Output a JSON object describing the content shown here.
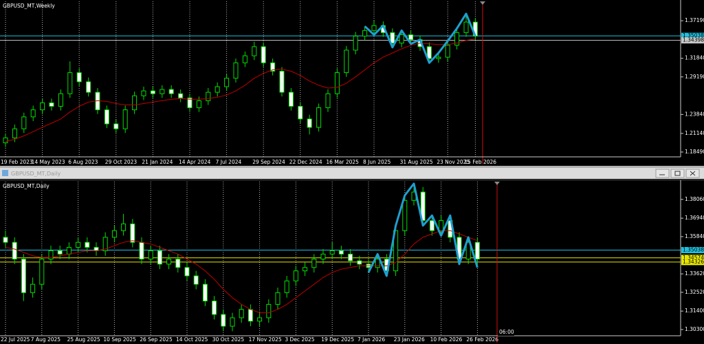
{
  "window": {
    "title": "GBPUSD_MT,Daily"
  },
  "chart_data": [
    {
      "type": "candlestick",
      "title": "GBPUSD_MT,Weekly",
      "categories": [
        "19 Feb 2023",
        null,
        null,
        null,
        "14 May 2023",
        null,
        null,
        null,
        "6 Aug 2023",
        null,
        null,
        null,
        "29 Oct 2023",
        null,
        null,
        null,
        "21 Jan 2024",
        null,
        null,
        null,
        "14 Apr 2024",
        null,
        null,
        null,
        "7 Jul 2024",
        null,
        null,
        null,
        "29 Sep 2024",
        null,
        null,
        null,
        "22 Dec 2024",
        null,
        null,
        null,
        "16 Mar 2025",
        null,
        null,
        null,
        "8 Jun 2025",
        null,
        null,
        null,
        "31 Aug 2025",
        null,
        null,
        null,
        "23 Nov 2025",
        null,
        null,
        "15 Feb 2026"
      ],
      "open": [
        1.198,
        1.205,
        1.218,
        1.235,
        1.245,
        1.255,
        1.25,
        1.268,
        1.298,
        1.285,
        1.27,
        1.245,
        1.225,
        1.218,
        1.245,
        1.265,
        1.272,
        1.268,
        1.274,
        1.268,
        1.262,
        1.248,
        1.258,
        1.27,
        1.278,
        1.29,
        1.312,
        1.322,
        1.335,
        1.312,
        1.3,
        1.27,
        1.25,
        1.232,
        1.22,
        1.248,
        1.268,
        1.298,
        1.33,
        1.35,
        1.358,
        1.365,
        1.355,
        1.34,
        1.352,
        1.345,
        1.335,
        1.318,
        1.32,
        1.337,
        1.355,
        1.37
      ],
      "high": [
        1.211,
        1.224,
        1.241,
        1.251,
        1.261,
        1.261,
        1.274,
        1.314,
        1.304,
        1.291,
        1.276,
        1.251,
        1.231,
        1.251,
        1.271,
        1.278,
        1.278,
        1.28,
        1.28,
        1.274,
        1.268,
        1.264,
        1.276,
        1.284,
        1.296,
        1.318,
        1.328,
        1.342,
        1.341,
        1.318,
        1.306,
        1.276,
        1.256,
        1.238,
        1.254,
        1.274,
        1.304,
        1.336,
        1.356,
        1.364,
        1.372,
        1.371,
        1.361,
        1.358,
        1.358,
        1.351,
        1.341,
        1.326,
        1.343,
        1.361,
        1.382,
        1.376
      ],
      "low": [
        1.192,
        1.199,
        1.212,
        1.229,
        1.239,
        1.244,
        1.244,
        1.262,
        1.279,
        1.264,
        1.239,
        1.219,
        1.212,
        1.212,
        1.239,
        1.259,
        1.262,
        1.262,
        1.262,
        1.256,
        1.242,
        1.242,
        1.252,
        1.264,
        1.272,
        1.284,
        1.306,
        1.316,
        1.306,
        1.294,
        1.264,
        1.244,
        1.226,
        1.21,
        1.214,
        1.242,
        1.262,
        1.292,
        1.324,
        1.344,
        1.352,
        1.349,
        1.334,
        1.334,
        1.339,
        1.329,
        1.312,
        1.312,
        1.314,
        1.331,
        1.349,
        1.344
      ],
      "close": [
        1.205,
        1.218,
        1.235,
        1.245,
        1.255,
        1.25,
        1.268,
        1.298,
        1.285,
        1.27,
        1.245,
        1.225,
        1.218,
        1.245,
        1.265,
        1.272,
        1.268,
        1.274,
        1.268,
        1.262,
        1.248,
        1.258,
        1.27,
        1.278,
        1.29,
        1.312,
        1.322,
        1.335,
        1.312,
        1.3,
        1.27,
        1.25,
        1.232,
        1.22,
        1.248,
        1.268,
        1.298,
        1.33,
        1.35,
        1.358,
        1.365,
        1.355,
        1.34,
        1.352,
        1.345,
        1.335,
        1.318,
        1.32,
        1.337,
        1.355,
        1.37,
        1.35
      ],
      "bull_color": "#00e000",
      "bear_color": "#ffffff",
      "ma": {
        "color": "#c00000",
        "values": [
          1.2,
          1.203,
          1.208,
          1.214,
          1.22,
          1.226,
          1.232,
          1.242,
          1.25,
          1.256,
          1.258,
          1.257,
          1.254,
          1.252,
          1.252,
          1.254,
          1.256,
          1.258,
          1.26,
          1.261,
          1.26,
          1.26,
          1.261,
          1.263,
          1.266,
          1.272,
          1.28,
          1.29,
          1.297,
          1.302,
          1.303,
          1.3,
          1.294,
          1.286,
          1.28,
          1.276,
          1.277,
          1.283,
          1.292,
          1.302,
          1.312,
          1.32,
          1.326,
          1.332,
          1.337,
          1.34,
          1.339,
          1.338,
          1.338,
          1.34,
          1.344,
          1.346
        ]
      },
      "zigzag": {
        "color": "#1e9fd0",
        "values": [
          null,
          null,
          null,
          null,
          null,
          null,
          null,
          null,
          null,
          null,
          null,
          null,
          null,
          null,
          null,
          null,
          null,
          null,
          null,
          null,
          null,
          null,
          null,
          null,
          null,
          null,
          null,
          null,
          null,
          null,
          null,
          null,
          null,
          null,
          null,
          null,
          null,
          null,
          null,
          1.364,
          1.352,
          1.365,
          1.334,
          1.358,
          1.339,
          1.345,
          1.312,
          1.326,
          1.343,
          1.361,
          1.382,
          1.35
        ]
      },
      "levels": [
        1.35038,
        1.34398
      ],
      "level_colors": [
        "#1fc2e0",
        "#c8c8c8"
      ],
      "ylim": [
        1.178,
        1.3995
      ],
      "yticks": [
        {
          "value": 1.3719,
          "label": "1.37190"
        },
        {
          "value": 1.3184,
          "label": "1.31840"
        },
        {
          "value": 1.2919,
          "label": "1.29190"
        },
        {
          "value": 1.2384,
          "label": "1.23840"
        },
        {
          "value": 1.2114,
          "label": "1.21140"
        },
        {
          "value": 1.1849,
          "label": "1.18490"
        }
      ]
    },
    {
      "type": "candlestick",
      "title": "GBPUSD_MT,Daily",
      "categories": [
        "22 Jul 2025",
        null,
        null,
        null,
        "7 Aug 2025",
        null,
        null,
        null,
        "25 Aug 2025",
        null,
        null,
        null,
        "10 Sep 2025",
        null,
        null,
        null,
        "26 Sep 2025",
        null,
        null,
        null,
        "14 Oct 2025",
        null,
        null,
        null,
        "30 Oct 2025",
        null,
        null,
        null,
        "17 Nov 2025",
        null,
        null,
        null,
        "3 Dec 2025",
        null,
        null,
        null,
        "19 Dec 2025",
        null,
        null,
        null,
        "7 Jan 2026",
        null,
        null,
        null,
        "23 Jan 2026",
        null,
        null,
        null,
        "10 Feb 2026",
        null,
        null,
        null,
        "26 Feb 2026"
      ],
      "open": [
        1.358,
        1.355,
        1.345,
        1.325,
        1.33,
        1.345,
        1.35,
        1.348,
        1.352,
        1.355,
        1.352,
        1.35,
        1.358,
        1.362,
        1.366,
        1.355,
        1.345,
        1.35,
        1.342,
        1.345,
        1.34,
        1.335,
        1.33,
        1.32,
        1.312,
        1.305,
        1.31,
        1.315,
        1.308,
        1.31,
        1.318,
        1.325,
        1.332,
        1.338,
        1.34,
        1.345,
        1.348,
        1.35,
        1.348,
        1.344,
        1.342,
        1.34,
        1.345,
        1.338,
        1.362,
        1.38,
        1.385,
        1.368,
        1.362,
        1.368,
        1.358,
        1.345,
        1.355
      ],
      "high": [
        1.362,
        1.358,
        1.348,
        1.334,
        1.348,
        1.353,
        1.353,
        1.355,
        1.358,
        1.358,
        1.355,
        1.361,
        1.365,
        1.372,
        1.369,
        1.358,
        1.353,
        1.353,
        1.348,
        1.348,
        1.343,
        1.338,
        1.333,
        1.323,
        1.315,
        1.313,
        1.318,
        1.318,
        1.313,
        1.321,
        1.328,
        1.335,
        1.341,
        1.343,
        1.348,
        1.351,
        1.355,
        1.353,
        1.351,
        1.347,
        1.345,
        1.348,
        1.348,
        1.365,
        1.383,
        1.39,
        1.388,
        1.371,
        1.371,
        1.371,
        1.361,
        1.358,
        1.358
      ],
      "low": [
        1.352,
        1.342,
        1.32,
        1.322,
        1.327,
        1.342,
        1.345,
        1.345,
        1.349,
        1.349,
        1.347,
        1.347,
        1.355,
        1.359,
        1.352,
        1.342,
        1.342,
        1.339,
        1.339,
        1.337,
        1.332,
        1.327,
        1.317,
        1.309,
        1.302,
        1.302,
        1.307,
        1.305,
        1.305,
        1.307,
        1.315,
        1.322,
        1.329,
        1.335,
        1.337,
        1.342,
        1.345,
        1.345,
        1.341,
        1.339,
        1.337,
        1.337,
        1.335,
        1.335,
        1.359,
        1.377,
        1.365,
        1.359,
        1.359,
        1.355,
        1.342,
        1.342,
        1.34
      ],
      "close": [
        1.355,
        1.345,
        1.325,
        1.33,
        1.345,
        1.35,
        1.348,
        1.352,
        1.355,
        1.352,
        1.35,
        1.358,
        1.362,
        1.366,
        1.355,
        1.345,
        1.35,
        1.342,
        1.345,
        1.34,
        1.335,
        1.33,
        1.32,
        1.312,
        1.305,
        1.31,
        1.315,
        1.308,
        1.31,
        1.318,
        1.325,
        1.332,
        1.338,
        1.34,
        1.345,
        1.348,
        1.35,
        1.348,
        1.344,
        1.342,
        1.34,
        1.345,
        1.338,
        1.362,
        1.38,
        1.385,
        1.368,
        1.362,
        1.368,
        1.358,
        1.345,
        1.355,
        1.345
      ],
      "bull_color": "#00e000",
      "bear_color": "#ffffff",
      "ma": {
        "color": "#c00000",
        "values": [
          1.352,
          1.351,
          1.349,
          1.347,
          1.346,
          1.346,
          1.347,
          1.348,
          1.349,
          1.35,
          1.35,
          1.351,
          1.353,
          1.355,
          1.356,
          1.355,
          1.354,
          1.352,
          1.35,
          1.348,
          1.345,
          1.342,
          1.338,
          1.333,
          1.327,
          1.322,
          1.318,
          1.315,
          1.313,
          1.313,
          1.315,
          1.318,
          1.322,
          1.326,
          1.33,
          1.334,
          1.337,
          1.339,
          1.34,
          1.341,
          1.341,
          1.341,
          1.341,
          1.343,
          1.348,
          1.354,
          1.358,
          1.36,
          1.362,
          1.362,
          1.36,
          1.358,
          1.356
        ]
      },
      "zigzag": {
        "color": "#1e9fd0",
        "values": [
          null,
          null,
          null,
          null,
          null,
          null,
          null,
          null,
          null,
          null,
          null,
          null,
          null,
          null,
          null,
          null,
          null,
          null,
          null,
          null,
          null,
          null,
          null,
          null,
          null,
          null,
          null,
          null,
          null,
          null,
          null,
          null,
          null,
          null,
          null,
          null,
          null,
          null,
          null,
          null,
          1.337,
          1.348,
          1.335,
          1.365,
          1.383,
          1.39,
          1.365,
          1.371,
          1.359,
          1.371,
          1.342,
          1.358,
          1.34
        ]
      },
      "levels": [
        1.35038,
        1.34574,
        1.34326
      ],
      "level_colors": [
        "#1fc2e0",
        "#e8e800",
        "#e8e800"
      ],
      "cursor_label": "06:00",
      "ylim": [
        1.2993,
        1.3912
      ],
      "yticks": [
        {
          "value": 1.3806,
          "label": "1.38060"
        },
        {
          "value": 1.3694,
          "label": "1.36940"
        },
        {
          "value": 1.3584,
          "label": "1.35840"
        },
        {
          "value": 1.3362,
          "label": "1.33620"
        },
        {
          "value": 1.3252,
          "label": "1.32520"
        },
        {
          "value": 1.314,
          "label": "1.31400"
        },
        {
          "value": 1.303,
          "label": "1.30300"
        }
      ]
    }
  ]
}
